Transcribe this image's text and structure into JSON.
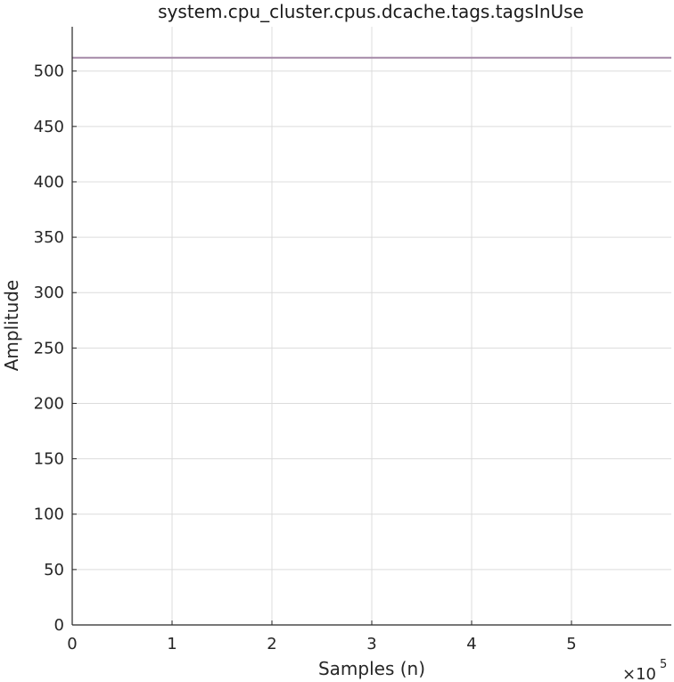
{
  "chart_data": {
    "type": "line",
    "title": "system.cpu_cluster.cpus.dcache.tags.tagsInUse",
    "xlabel": "Samples (n)",
    "ylabel": "Amplitude",
    "x_exponent_label": "×10",
    "x_exponent_power": "5",
    "xlim": [
      0,
      600000
    ],
    "ylim": [
      0,
      540
    ],
    "x_ticks": [
      0,
      100000,
      200000,
      300000,
      400000,
      500000
    ],
    "x_tick_labels": [
      "0",
      "1",
      "2",
      "3",
      "4",
      "5"
    ],
    "y_ticks": [
      0,
      50,
      100,
      150,
      200,
      250,
      300,
      350,
      400,
      450,
      500
    ],
    "y_tick_labels": [
      "0",
      "50",
      "100",
      "150",
      "200",
      "250",
      "300",
      "350",
      "400",
      "450",
      "500"
    ],
    "grid": true,
    "series": [
      {
        "color": "#a58aa8",
        "x": [
          0,
          600000
        ],
        "y": [
          512,
          512
        ]
      }
    ]
  }
}
